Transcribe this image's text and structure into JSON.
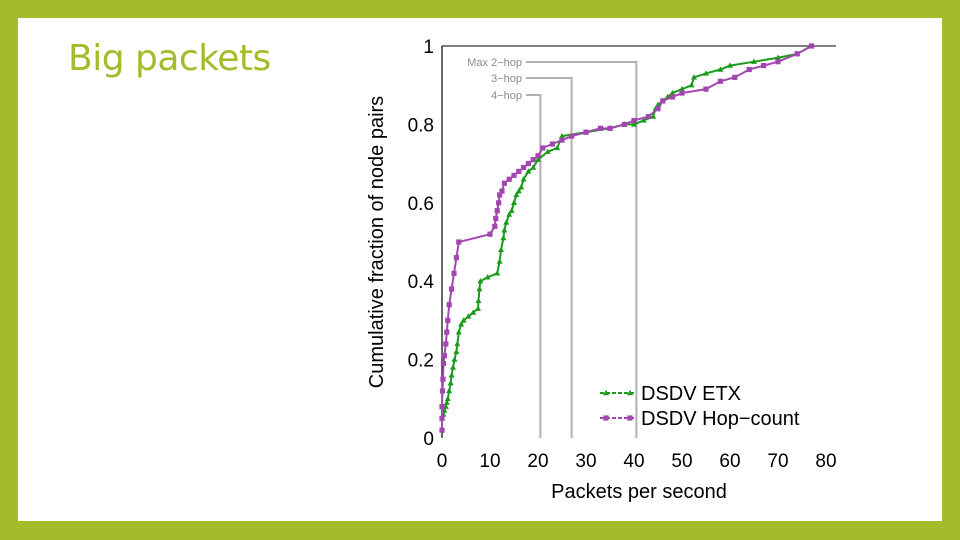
{
  "slide": {
    "title": "Big packets",
    "accent_color": "#a4bb2a",
    "background_color": "#ffffff"
  },
  "chart_data": {
    "type": "line",
    "title": "",
    "xlabel": "Packets per second",
    "ylabel": "Cumulative fraction of node pairs",
    "xlim": [
      0,
      80
    ],
    "ylim": [
      0,
      1
    ],
    "xticks": [
      "0",
      "10",
      "20",
      "30",
      "40",
      "50",
      "60",
      "70",
      "80"
    ],
    "yticks": [
      "0",
      "0.2",
      "0.4",
      "0.6",
      "0.8",
      "1"
    ],
    "grid": false,
    "legend_position": "bottom-right",
    "annotations": [
      {
        "label": "Max 2−hop",
        "x": 40.5
      },
      {
        "label": "3−hop",
        "x": 27
      },
      {
        "label": "4−hop",
        "x": 20.5
      }
    ],
    "annotation_color": "#b0b0b0",
    "series": [
      {
        "name": "DSDV ETX",
        "color": "#1a9c1a",
        "marker": "triangle",
        "x": [
          0.3,
          0.5,
          0.8,
          1.0,
          1.2,
          1.5,
          1.8,
          2.0,
          2.3,
          2.6,
          3.0,
          3.2,
          3.5,
          4.0,
          4.5,
          5.5,
          6.5,
          7.5,
          7.6,
          7.8,
          8.0,
          9.5,
          11.5,
          12.0,
          12.3,
          12.8,
          13.0,
          13.4,
          14.0,
          14.5,
          15.0,
          15.5,
          16.0,
          16.5,
          17.0,
          18.0,
          19.0,
          20.0,
          22.0,
          24.0,
          25.0,
          30.0,
          35.0,
          38.0,
          40.0,
          42.0,
          44.0,
          44.5,
          45.0,
          46.0,
          47.0,
          48.0,
          50.0,
          52.0,
          52.5,
          55.0,
          58.0,
          60.0,
          65.0,
          70.0,
          74.0,
          77.0
        ],
        "y": [
          0.06,
          0.07,
          0.08,
          0.09,
          0.1,
          0.12,
          0.14,
          0.16,
          0.18,
          0.2,
          0.22,
          0.24,
          0.27,
          0.29,
          0.3,
          0.31,
          0.32,
          0.33,
          0.35,
          0.38,
          0.4,
          0.41,
          0.42,
          0.45,
          0.48,
          0.51,
          0.53,
          0.55,
          0.57,
          0.58,
          0.6,
          0.62,
          0.63,
          0.64,
          0.66,
          0.68,
          0.69,
          0.71,
          0.73,
          0.74,
          0.77,
          0.78,
          0.79,
          0.8,
          0.8,
          0.81,
          0.82,
          0.84,
          0.85,
          0.86,
          0.87,
          0.88,
          0.89,
          0.9,
          0.92,
          0.93,
          0.94,
          0.95,
          0.96,
          0.97,
          0.98,
          1.0
        ]
      },
      {
        "name": "DSDV Hop−count",
        "color": "#a347b0",
        "marker": "square",
        "x": [
          0.0,
          0.0,
          0.0,
          0.1,
          0.2,
          0.3,
          0.5,
          0.8,
          1.0,
          1.2,
          1.5,
          2.0,
          2.5,
          3.0,
          3.5,
          10.0,
          11.0,
          11.2,
          11.5,
          11.8,
          12.0,
          12.5,
          13.0,
          14.0,
          15.0,
          16.0,
          17.0,
          18.0,
          19.0,
          20.0,
          21.0,
          23.0,
          25.0,
          27.0,
          30.0,
          33.0,
          35.0,
          38.0,
          40.0,
          43.0,
          45.0,
          46.0,
          48.0,
          50.0,
          55.0,
          58.0,
          61.0,
          64.0,
          67.0,
          70.0,
          74.0,
          77.0
        ],
        "y": [
          0.02,
          0.05,
          0.08,
          0.12,
          0.15,
          0.19,
          0.21,
          0.24,
          0.27,
          0.3,
          0.34,
          0.38,
          0.42,
          0.46,
          0.5,
          0.52,
          0.54,
          0.56,
          0.58,
          0.6,
          0.62,
          0.63,
          0.65,
          0.66,
          0.67,
          0.68,
          0.69,
          0.7,
          0.71,
          0.72,
          0.74,
          0.75,
          0.76,
          0.77,
          0.78,
          0.79,
          0.79,
          0.8,
          0.81,
          0.82,
          0.84,
          0.86,
          0.87,
          0.88,
          0.89,
          0.91,
          0.92,
          0.94,
          0.95,
          0.96,
          0.98,
          1.0
        ]
      }
    ]
  }
}
